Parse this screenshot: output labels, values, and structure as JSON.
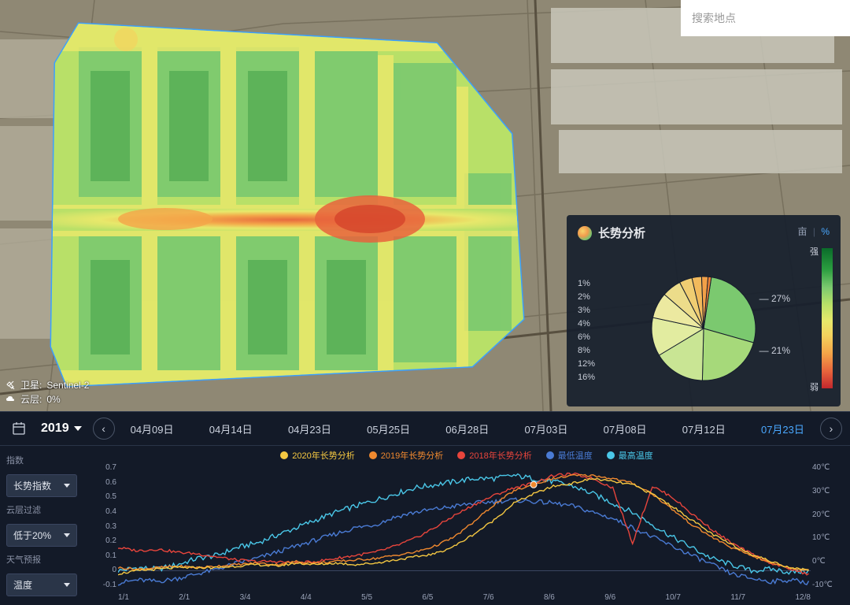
{
  "search": {
    "placeholder": "搜索地点"
  },
  "satellite": {
    "sat_label": "卫星:",
    "sat_value": "Sentinel-2",
    "cloud_label": "云层:",
    "cloud_value": "0%"
  },
  "analysis": {
    "title": "长势分析",
    "unit_left": "亩",
    "unit_right": "%",
    "gradient_strong": "强",
    "gradient_weak": "弱",
    "pie": {
      "type": "pie",
      "slices": [
        {
          "label": "27%",
          "value": 27,
          "color": "#7bc96f"
        },
        {
          "label": "21%",
          "value": 21,
          "color": "#a6d97a"
        },
        {
          "label": "16%",
          "value": 16,
          "color": "#c9e594"
        },
        {
          "label": "12%",
          "value": 12,
          "color": "#e2eca0"
        },
        {
          "label": "8%",
          "value": 8,
          "color": "#ece9a0"
        },
        {
          "label": "6%",
          "value": 6,
          "color": "#ecdc8a"
        },
        {
          "label": "4%",
          "value": 4,
          "color": "#f0cd72"
        },
        {
          "label": "3%",
          "value": 3,
          "color": "#f2ba5c"
        },
        {
          "label": "2%",
          "value": 2,
          "color": "#f1a048"
        },
        {
          "label": "1%",
          "value": 1,
          "color": "#ec8238"
        }
      ],
      "left_labels": [
        "1%",
        "2%",
        "3%",
        "4%",
        "6%",
        "8%",
        "12%",
        "16%"
      ],
      "right_labels": [
        "27%",
        "21%"
      ]
    }
  },
  "timeline": {
    "year": "2019",
    "dates": [
      "04月09日",
      "04月14日",
      "04月23日",
      "05月25日",
      "06月28日",
      "07月03日",
      "07月08日",
      "07月12日",
      "07月23日"
    ],
    "active_index": 8
  },
  "chart": {
    "type": "line",
    "controls": {
      "index_group": "指数",
      "index_value": "长势指数",
      "cloud_group": "云层过滤",
      "cloud_value": "低于20%",
      "weather_group": "天气预报",
      "weather_value": "温度"
    },
    "legend": [
      {
        "label": "2020年长势分析",
        "color": "#f5c842"
      },
      {
        "label": "2019年长势分析",
        "color": "#f0892f"
      },
      {
        "label": "2018年长势分析",
        "color": "#e8453c"
      },
      {
        "label": "最低温度",
        "color": "#4a7bd4"
      },
      {
        "label": "最高温度",
        "color": "#4ac7e8"
      }
    ],
    "y_left": {
      "min": -0.1,
      "max": 0.7,
      "ticks": [
        "0.7",
        "0.6",
        "0.5",
        "0.4",
        "0.3",
        "0.2",
        "0.1",
        "0",
        "-0.1"
      ]
    },
    "y_right": {
      "ticks": [
        "40℃",
        "30℃",
        "20℃",
        "10℃",
        "0℃",
        "-10℃"
      ]
    },
    "x_ticks": [
      "1/1",
      "2/1",
      "3/4",
      "4/4",
      "5/5",
      "6/5",
      "7/6",
      "8/6",
      "9/6",
      "10/7",
      "11/7",
      "12/8"
    ],
    "series": {
      "growth2020": {
        "color": "#f5c842",
        "data": [
          -0.02,
          0,
          0.01,
          0.02,
          0.02,
          0.02,
          0.03,
          0.04,
          0.03,
          0.05,
          0.04,
          0.05,
          0.04,
          0.05,
          0.07,
          0.09,
          0.11,
          0.16,
          0.24,
          0.33,
          0.44,
          0.5,
          0.55,
          0.57,
          0.6,
          0.58,
          0.56,
          0.5,
          0.42,
          0.33,
          0.24,
          0.17,
          0.11,
          0.06,
          0.02,
          0
        ]
      },
      "growth2019": {
        "color": "#f0892f",
        "data": [
          0.02,
          0.01,
          0.02,
          0.03,
          0.02,
          0.03,
          0.04,
          0.05,
          0.04,
          0.06,
          0.05,
          0.06,
          0.07,
          0.08,
          0.1,
          0.12,
          0.16,
          0.22,
          0.32,
          0.43,
          0.52,
          0.56,
          0.6,
          0.62,
          0.62,
          0.6,
          0.57,
          0.5,
          0.4,
          0.3,
          0.22,
          0.15,
          0.1,
          0.05,
          0.02,
          0
        ]
      },
      "growth2018": {
        "color": "#e8453c",
        "data": [
          0.15,
          0.13,
          0.14,
          0.12,
          0.11,
          0.09,
          0.07,
          0.06,
          0.06,
          0.05,
          0.06,
          0.08,
          0.1,
          0.12,
          0.16,
          0.21,
          0.28,
          0.36,
          0.43,
          0.49,
          0.54,
          0.57,
          0.62,
          0.63,
          0.6,
          0.54,
          0.18,
          0.55,
          0.48,
          0.37,
          0.27,
          0.18,
          0.11,
          0.05,
          0.01,
          -0.03
        ]
      },
      "tempLow": {
        "color": "#4a7bd4",
        "data": [
          -0.08,
          -0.06,
          -0.07,
          -0.05,
          -0.02,
          0.01,
          0.05,
          0.08,
          0.12,
          0.16,
          0.2,
          0.24,
          0.28,
          0.3,
          0.35,
          0.38,
          0.4,
          0.42,
          0.44,
          0.45,
          0.46,
          0.45,
          0.44,
          0.42,
          0.38,
          0.34,
          0.28,
          0.22,
          0.16,
          0.1,
          0.04,
          -0.02,
          -0.05,
          -0.07,
          -0.06,
          -0.08
        ]
      },
      "tempHigh": {
        "color": "#4ac7e8",
        "data": [
          0,
          0.02,
          0.01,
          0.04,
          0.08,
          0.1,
          0.15,
          0.18,
          0.23,
          0.28,
          0.33,
          0.38,
          0.42,
          0.46,
          0.5,
          0.54,
          0.56,
          0.58,
          0.6,
          0.6,
          0.62,
          0.6,
          0.58,
          0.55,
          0.5,
          0.44,
          0.38,
          0.3,
          0.22,
          0.15,
          0.08,
          0.04,
          0,
          0.01,
          -0.01,
          0
        ]
      }
    },
    "background_color": "#131a28",
    "grid_color": "#2a3548",
    "label_fontsize": 10
  },
  "map": {
    "outline_color": "#3aa0ff",
    "heatmap_colors": [
      "#0a6b2a",
      "#2a9d3f",
      "#7bc96f",
      "#b8e068",
      "#e8e86b",
      "#f4d35e",
      "#f4a548",
      "#e8633c"
    ]
  }
}
